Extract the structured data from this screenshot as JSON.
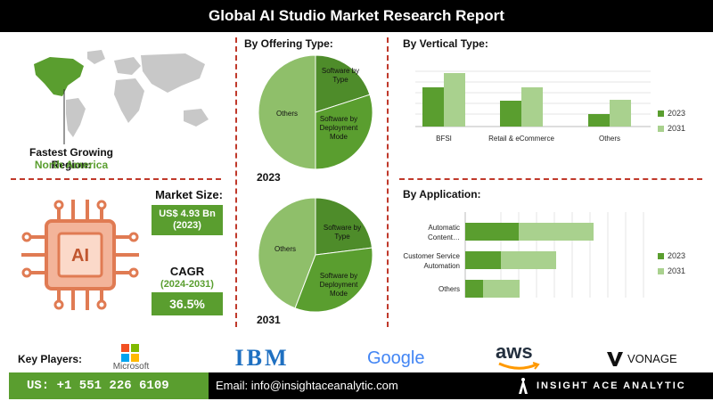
{
  "header": {
    "title": "Global AI Studio Market Research Report"
  },
  "region": {
    "label": "Fastest Growing Region:",
    "value": "North America"
  },
  "market_size": {
    "label": "Market Size:",
    "value_line1": "US$ 4.93 Bn",
    "value_line2": "(2023)"
  },
  "cagr": {
    "label": "CAGR",
    "period": "(2024-2031)",
    "value": "36.5%"
  },
  "offering": {
    "title": "By Offering Type:",
    "year_2023": "2023",
    "year_2031": "2031",
    "slices": {
      "software_by_type": "Software by Type",
      "software_by_deployment": "Software by Deployment Mode",
      "others": "Others"
    }
  },
  "vertical": {
    "title": "By  Vertical Type:"
  },
  "application": {
    "title": "By Application:"
  },
  "colors": {
    "dark_green": "#5a9e2f",
    "light_green": "#a9d18e",
    "pie_light": "#8fbf6a",
    "accent_red": "#c0392b",
    "orange": "#e07b53"
  },
  "chart_data": [
    {
      "type": "pie",
      "title": "2023",
      "categories": [
        "Software by Type",
        "Software by Deployment Mode",
        "Others"
      ],
      "values": [
        15,
        35,
        50
      ]
    },
    {
      "type": "pie",
      "title": "2031",
      "categories": [
        "Software by Type",
        "Software by Deployment Mode",
        "Others"
      ],
      "values": [
        20,
        37,
        43
      ]
    },
    {
      "type": "bar",
      "title": "By  Vertical Type:",
      "categories": [
        "BFSI",
        "Retail & eCommerce",
        "Others"
      ],
      "series": [
        {
          "name": "2023",
          "values": [
            44,
            29,
            14
          ]
        },
        {
          "name": "2031",
          "values": [
            60,
            44,
            30
          ]
        }
      ],
      "ylim": [
        0,
        70
      ],
      "legend": "right",
      "grid": true
    },
    {
      "type": "bar",
      "orientation": "horizontal",
      "stacked": true,
      "title": "By Application:",
      "categories": [
        "Automatic Content…",
        "Customer Service Automation",
        "Others"
      ],
      "series": [
        {
          "name": "2023",
          "values": [
            60,
            40,
            20
          ]
        },
        {
          "name": "2031",
          "values": [
            84,
            62,
            41
          ]
        }
      ],
      "xlim": [
        0,
        200
      ],
      "legend": "right",
      "grid": true
    }
  ],
  "key_players": {
    "label": "Key Players:",
    "microsoft": "Microsoft",
    "ibm": "IBM",
    "google": "Google",
    "aws": "aws",
    "vonage": "VONAGE"
  },
  "footer": {
    "phone": "US: +1 551 226 6109",
    "email": "Email: info@insightaceanalytic.com",
    "brand": "INSIGHT ACE ANALYTIC"
  }
}
